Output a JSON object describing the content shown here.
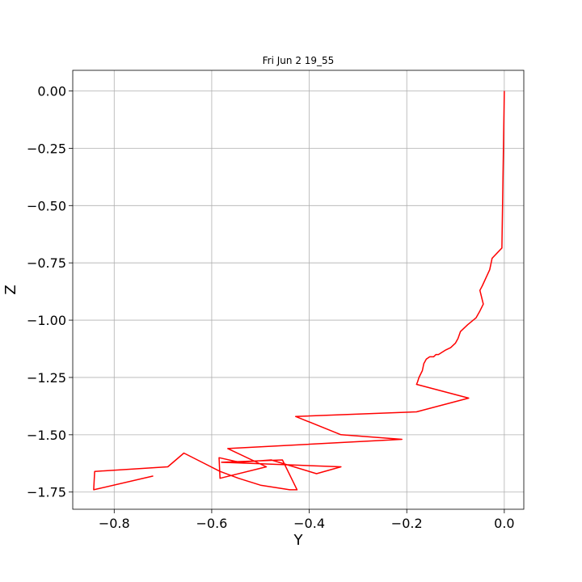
{
  "chart_data": {
    "type": "line",
    "title": "Fri Jun  2 19_55",
    "xlabel": "Y",
    "ylabel": "Z",
    "xlim": [
      -0.885,
      0.04
    ],
    "ylim": [
      -1.825,
      0.09
    ],
    "grid": true,
    "xticks": [
      -0.8,
      -0.6,
      -0.4,
      -0.2,
      0.0
    ],
    "xtick_labels": [
      "−0.8",
      "−0.6",
      "−0.4",
      "−0.2",
      "0.0"
    ],
    "yticks": [
      0.0,
      -0.25,
      -0.5,
      -0.75,
      -1.0,
      -1.25,
      -1.5,
      -1.75
    ],
    "ytick_labels": [
      "0.00",
      "−0.25",
      "−0.50",
      "−0.75",
      "−1.00",
      "−1.25",
      "−1.50",
      "−1.75"
    ],
    "series": [
      {
        "color": "#ff0000",
        "x": [
          0.0,
          -0.005,
          -0.025,
          -0.03,
          -0.045,
          -0.05,
          -0.043,
          -0.05,
          -0.058,
          -0.075,
          -0.09,
          -0.095,
          -0.1,
          -0.11,
          -0.12,
          -0.135,
          -0.14,
          -0.145,
          -0.153,
          -0.16,
          -0.165,
          -0.168,
          -0.175,
          -0.178,
          -0.18,
          -0.073,
          -0.18,
          -0.428,
          -0.335,
          -0.21,
          -0.567,
          -0.488,
          -0.583,
          -0.585,
          -0.543,
          -0.478,
          -0.385,
          -0.335,
          -0.58,
          -0.455,
          -0.425,
          -0.44,
          -0.5,
          -0.545,
          -0.583,
          -0.657,
          -0.69,
          -0.84,
          -0.842,
          -0.72
        ],
        "y": [
          0.0,
          -0.685,
          -0.73,
          -0.78,
          -0.85,
          -0.87,
          -0.93,
          -0.96,
          -0.99,
          -1.02,
          -1.05,
          -1.08,
          -1.1,
          -1.12,
          -1.13,
          -1.15,
          -1.15,
          -1.16,
          -1.16,
          -1.17,
          -1.19,
          -1.22,
          -1.25,
          -1.27,
          -1.28,
          -1.34,
          -1.4,
          -1.42,
          -1.5,
          -1.52,
          -1.56,
          -1.64,
          -1.69,
          -1.6,
          -1.62,
          -1.61,
          -1.67,
          -1.64,
          -1.62,
          -1.61,
          -1.74,
          -1.74,
          -1.72,
          -1.69,
          -1.66,
          -1.58,
          -1.64,
          -1.66,
          -1.74,
          -1.68
        ]
      }
    ]
  }
}
